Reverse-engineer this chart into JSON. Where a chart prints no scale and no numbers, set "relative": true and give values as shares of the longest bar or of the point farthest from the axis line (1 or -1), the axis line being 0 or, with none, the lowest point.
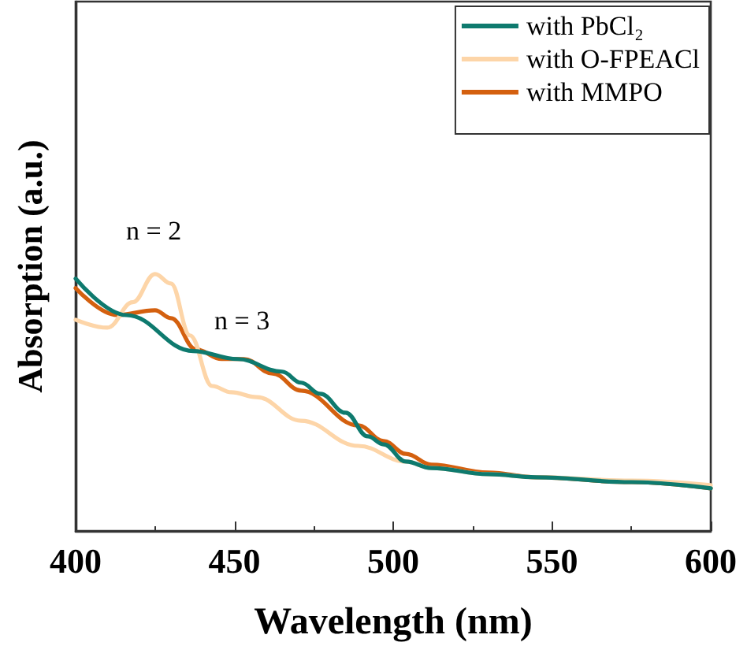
{
  "chart_data": {
    "type": "line",
    "relative": true,
    "xlabel": "Wavelength (nm)",
    "ylabel": "Absorption (a.u.)",
    "xlim": [
      400,
      600
    ],
    "xticks": [
      400,
      450,
      500,
      550,
      600
    ],
    "legend": "top right",
    "marker": "none",
    "line_style": "solid",
    "grid": false,
    "series": [
      {
        "name": "with PbCl₂",
        "color": "#0e7a6e",
        "x": [
          400,
          416,
          437,
          451,
          465,
          471,
          477,
          485,
          492,
          497,
          504,
          512,
          530,
          545,
          575,
          600
        ],
        "values": [
          0.982,
          0.84,
          0.7,
          0.669,
          0.62,
          0.577,
          0.534,
          0.46,
          0.368,
          0.337,
          0.27,
          0.245,
          0.221,
          0.209,
          0.19,
          0.166
        ]
      },
      {
        "name": "with O-FPEACl",
        "color": "#fdd5a8",
        "x": [
          400,
          410,
          418,
          425,
          430,
          436,
          443,
          449,
          457,
          471,
          489,
          504,
          512,
          530,
          545,
          575,
          600
        ],
        "values": [
          0.822,
          0.791,
          0.89,
          1.0,
          0.963,
          0.761,
          0.564,
          0.54,
          0.521,
          0.429,
          0.331,
          0.27,
          0.245,
          0.221,
          0.209,
          0.196,
          0.178
        ]
      },
      {
        "name": "with MMPO",
        "color": "#d4600f",
        "x": [
          400,
          413,
          425,
          430,
          438,
          446,
          453,
          462,
          471,
          489,
          497,
          504,
          512,
          530,
          545,
          575,
          600
        ],
        "values": [
          0.945,
          0.84,
          0.859,
          0.828,
          0.706,
          0.669,
          0.669,
          0.613,
          0.546,
          0.411,
          0.35,
          0.3,
          0.258,
          0.227,
          0.209,
          0.19,
          0.166
        ]
      }
    ],
    "annotations": [
      "n = 2",
      "n = 3"
    ]
  }
}
